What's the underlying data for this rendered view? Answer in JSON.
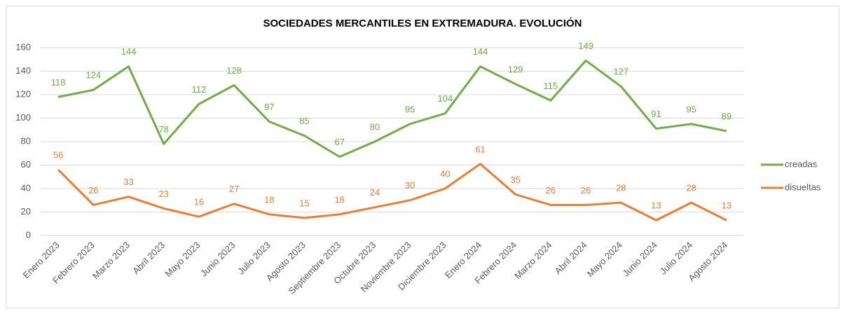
{
  "chart_data": {
    "type": "line",
    "title": "SOCIEDADES MERCANTILES EN EXTREMADURA. EVOLUCIÓN",
    "categories": [
      "Enero 2023",
      "Febrero 2023",
      "Marzo 2023",
      "Abril 2023",
      "Mayo 2023",
      "Junio 2023",
      "Julio 2023",
      "Agosto 2023",
      "Septiembre 2023",
      "Octubre 2023",
      "Noviembre 2023",
      "Diciembre 2023",
      "Enero 2024",
      "Febrero 2024",
      "Marzo 2024",
      "Abril 2024",
      "Mayo 2024",
      "Junio 2024",
      "Julio 2024",
      "Agosto 2024"
    ],
    "series": [
      {
        "name": "creadas",
        "color": "#70ad47",
        "values": [
          118,
          124,
          144,
          78,
          112,
          128,
          97,
          85,
          67,
          80,
          95,
          104,
          144,
          129,
          115,
          149,
          127,
          91,
          95,
          89
        ]
      },
      {
        "name": "disueltas",
        "color": "#ed7d31",
        "values": [
          56,
          26,
          33,
          23,
          16,
          27,
          18,
          15,
          18,
          24,
          30,
          40,
          61,
          35,
          26,
          26,
          28,
          13,
          28,
          13
        ]
      }
    ],
    "ylim": [
      0,
      160
    ],
    "yticks": [
      0,
      20,
      40,
      60,
      80,
      100,
      120,
      140,
      160
    ],
    "grid": true,
    "legend": "right",
    "data_labels": true
  }
}
